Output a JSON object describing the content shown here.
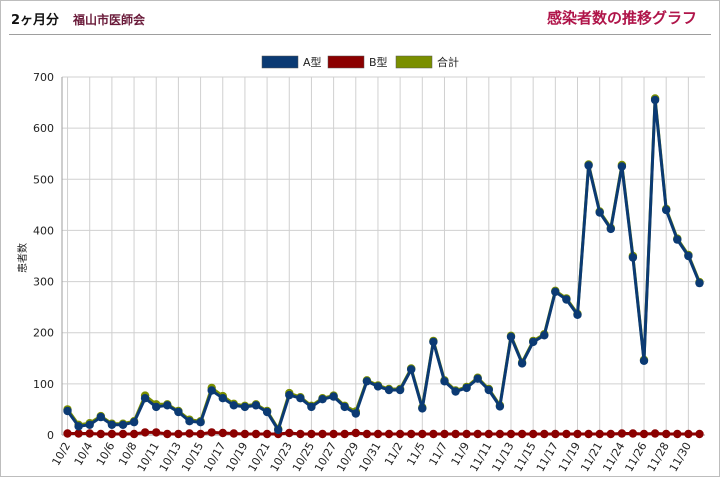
{
  "header": {
    "period": "2ヶ月分",
    "source": "福山市医師会",
    "title": "感染者数の推移グラフ"
  },
  "colors": {
    "a_type": "#0b3a73",
    "b_type": "#8b0000",
    "total": "#7a8f00",
    "grid": "#d0d0d0",
    "title": "#b0154a"
  },
  "chart_data": {
    "type": "line",
    "ylabel": "患者数",
    "ylim": [
      0,
      700
    ],
    "yticks": [
      0,
      100,
      200,
      300,
      400,
      500,
      600,
      700
    ],
    "grid": true,
    "legend_position": "top-center",
    "x": [
      "10/2",
      "10/3",
      "10/4",
      "10/5",
      "10/6",
      "10/7",
      "10/8",
      "10/9",
      "10/11",
      "10/12",
      "10/13",
      "10/14",
      "10/15",
      "10/16",
      "10/17",
      "10/18",
      "10/19",
      "10/20",
      "10/21",
      "10/22",
      "10/23",
      "10/24",
      "10/25",
      "10/26",
      "10/27",
      "10/28",
      "10/29",
      "10/30",
      "10/31",
      "11/1",
      "11/2",
      "11/3",
      "11/5",
      "11/6",
      "11/7",
      "11/8",
      "11/9",
      "11/10",
      "11/11",
      "11/12",
      "11/13",
      "11/14",
      "11/15",
      "11/16",
      "11/17",
      "11/18",
      "11/19",
      "11/20",
      "11/21",
      "11/22",
      "11/24",
      "11/25",
      "11/26",
      "11/27",
      "11/28",
      "11/29",
      "11/30",
      "12/1"
    ],
    "x_tick_labels": [
      "10/2",
      "10/4",
      "10/6",
      "10/8",
      "10/11",
      "10/13",
      "10/15",
      "10/17",
      "10/19",
      "10/21",
      "10/23",
      "10/25",
      "10/27",
      "10/29",
      "10/31",
      "11/2",
      "11/5",
      "11/7",
      "11/9",
      "11/11",
      "11/13",
      "11/15",
      "11/17",
      "11/19",
      "11/21",
      "11/24",
      "11/26",
      "11/28",
      "11/30"
    ],
    "series": [
      {
        "name": "A型",
        "values": [
          47,
          17,
          20,
          35,
          20,
          20,
          25,
          72,
          55,
          58,
          45,
          27,
          25,
          87,
          72,
          58,
          55,
          58,
          45,
          10,
          78,
          72,
          55,
          70,
          75,
          55,
          42,
          105,
          95,
          88,
          88,
          128,
          52,
          182,
          105,
          85,
          92,
          110,
          88,
          56,
          192,
          140,
          182,
          195,
          280,
          265,
          235,
          527,
          435,
          403,
          525,
          347,
          145,
          655,
          440,
          382,
          350,
          297
        ]
      },
      {
        "name": "B型",
        "values": [
          3,
          3,
          3,
          2,
          2,
          2,
          2,
          5,
          5,
          2,
          2,
          3,
          2,
          5,
          4,
          3,
          2,
          2,
          2,
          2,
          4,
          2,
          2,
          2,
          2,
          2,
          4,
          2,
          2,
          2,
          2,
          2,
          2,
          2,
          2,
          2,
          2,
          2,
          2,
          2,
          2,
          2,
          2,
          2,
          2,
          2,
          2,
          2,
          2,
          2,
          3,
          3,
          2,
          3,
          2,
          2,
          2,
          2
        ]
      },
      {
        "name": "合計",
        "values": [
          50,
          20,
          23,
          37,
          22,
          22,
          27,
          77,
          60,
          60,
          47,
          30,
          27,
          92,
          76,
          61,
          57,
          60,
          47,
          12,
          82,
          74,
          57,
          72,
          77,
          57,
          46,
          107,
          97,
          90,
          90,
          130,
          54,
          184,
          107,
          87,
          94,
          112,
          90,
          58,
          194,
          142,
          184,
          197,
          282,
          267,
          237,
          529,
          437,
          405,
          528,
          350,
          147,
          658,
          442,
          384,
          352,
          299
        ]
      }
    ]
  }
}
